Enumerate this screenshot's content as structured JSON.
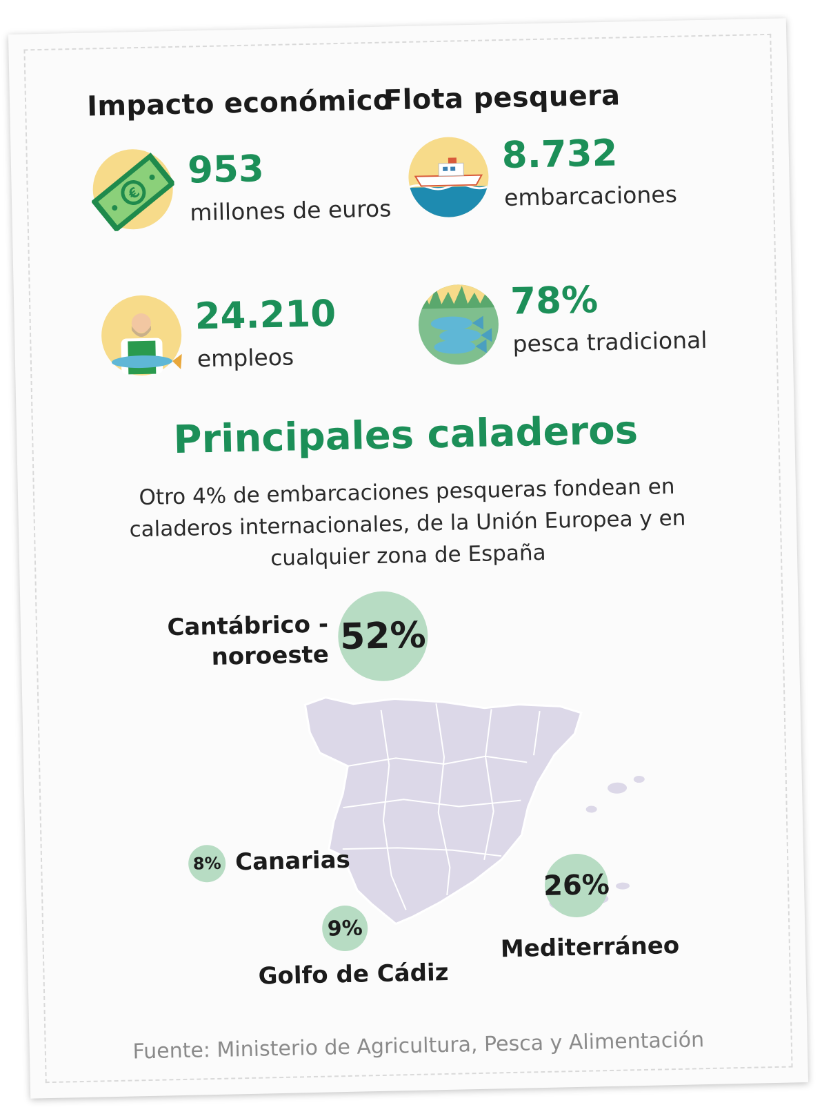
{
  "sections": {
    "economic": {
      "heading": "Impacto económico",
      "stat1": {
        "value": "953",
        "label": "millones de euros",
        "icon": "euro-banknote-icon"
      },
      "stat2": {
        "value": "24.210",
        "label": "empleos",
        "icon": "fisherman-icon"
      }
    },
    "fleet": {
      "heading": "Flota pesquera",
      "stat1": {
        "value": "8.732",
        "label": "embarcaciones",
        "icon": "boat-icon"
      },
      "stat2": {
        "value": "78%",
        "label": "pesca tradicional",
        "icon": "fish-icon"
      }
    }
  },
  "grounds": {
    "title": "Principales caladeros",
    "intro": "Otro 4% de embarcaciones pesqueras fondean en caladeros internacionales, de la Unión Europea y en cualquier zona de España",
    "regions": [
      {
        "name_line1": "Cantábrico -",
        "name_line2": "noroeste",
        "percent": "52%"
      },
      {
        "name": "Canarias",
        "percent": "8%"
      },
      {
        "name": "Golfo de Cádiz",
        "percent": "9%"
      },
      {
        "name": "Mediterráneo",
        "percent": "26%"
      }
    ]
  },
  "source": "Fuente: Ministerio de Agricultura, Pesca y Alimentación",
  "colors": {
    "accent_green": "#1c8f58",
    "bubble_green": "#b7dcc3",
    "map_lilac": "#dcd8e8",
    "icon_yellow": "#f7db8a"
  }
}
